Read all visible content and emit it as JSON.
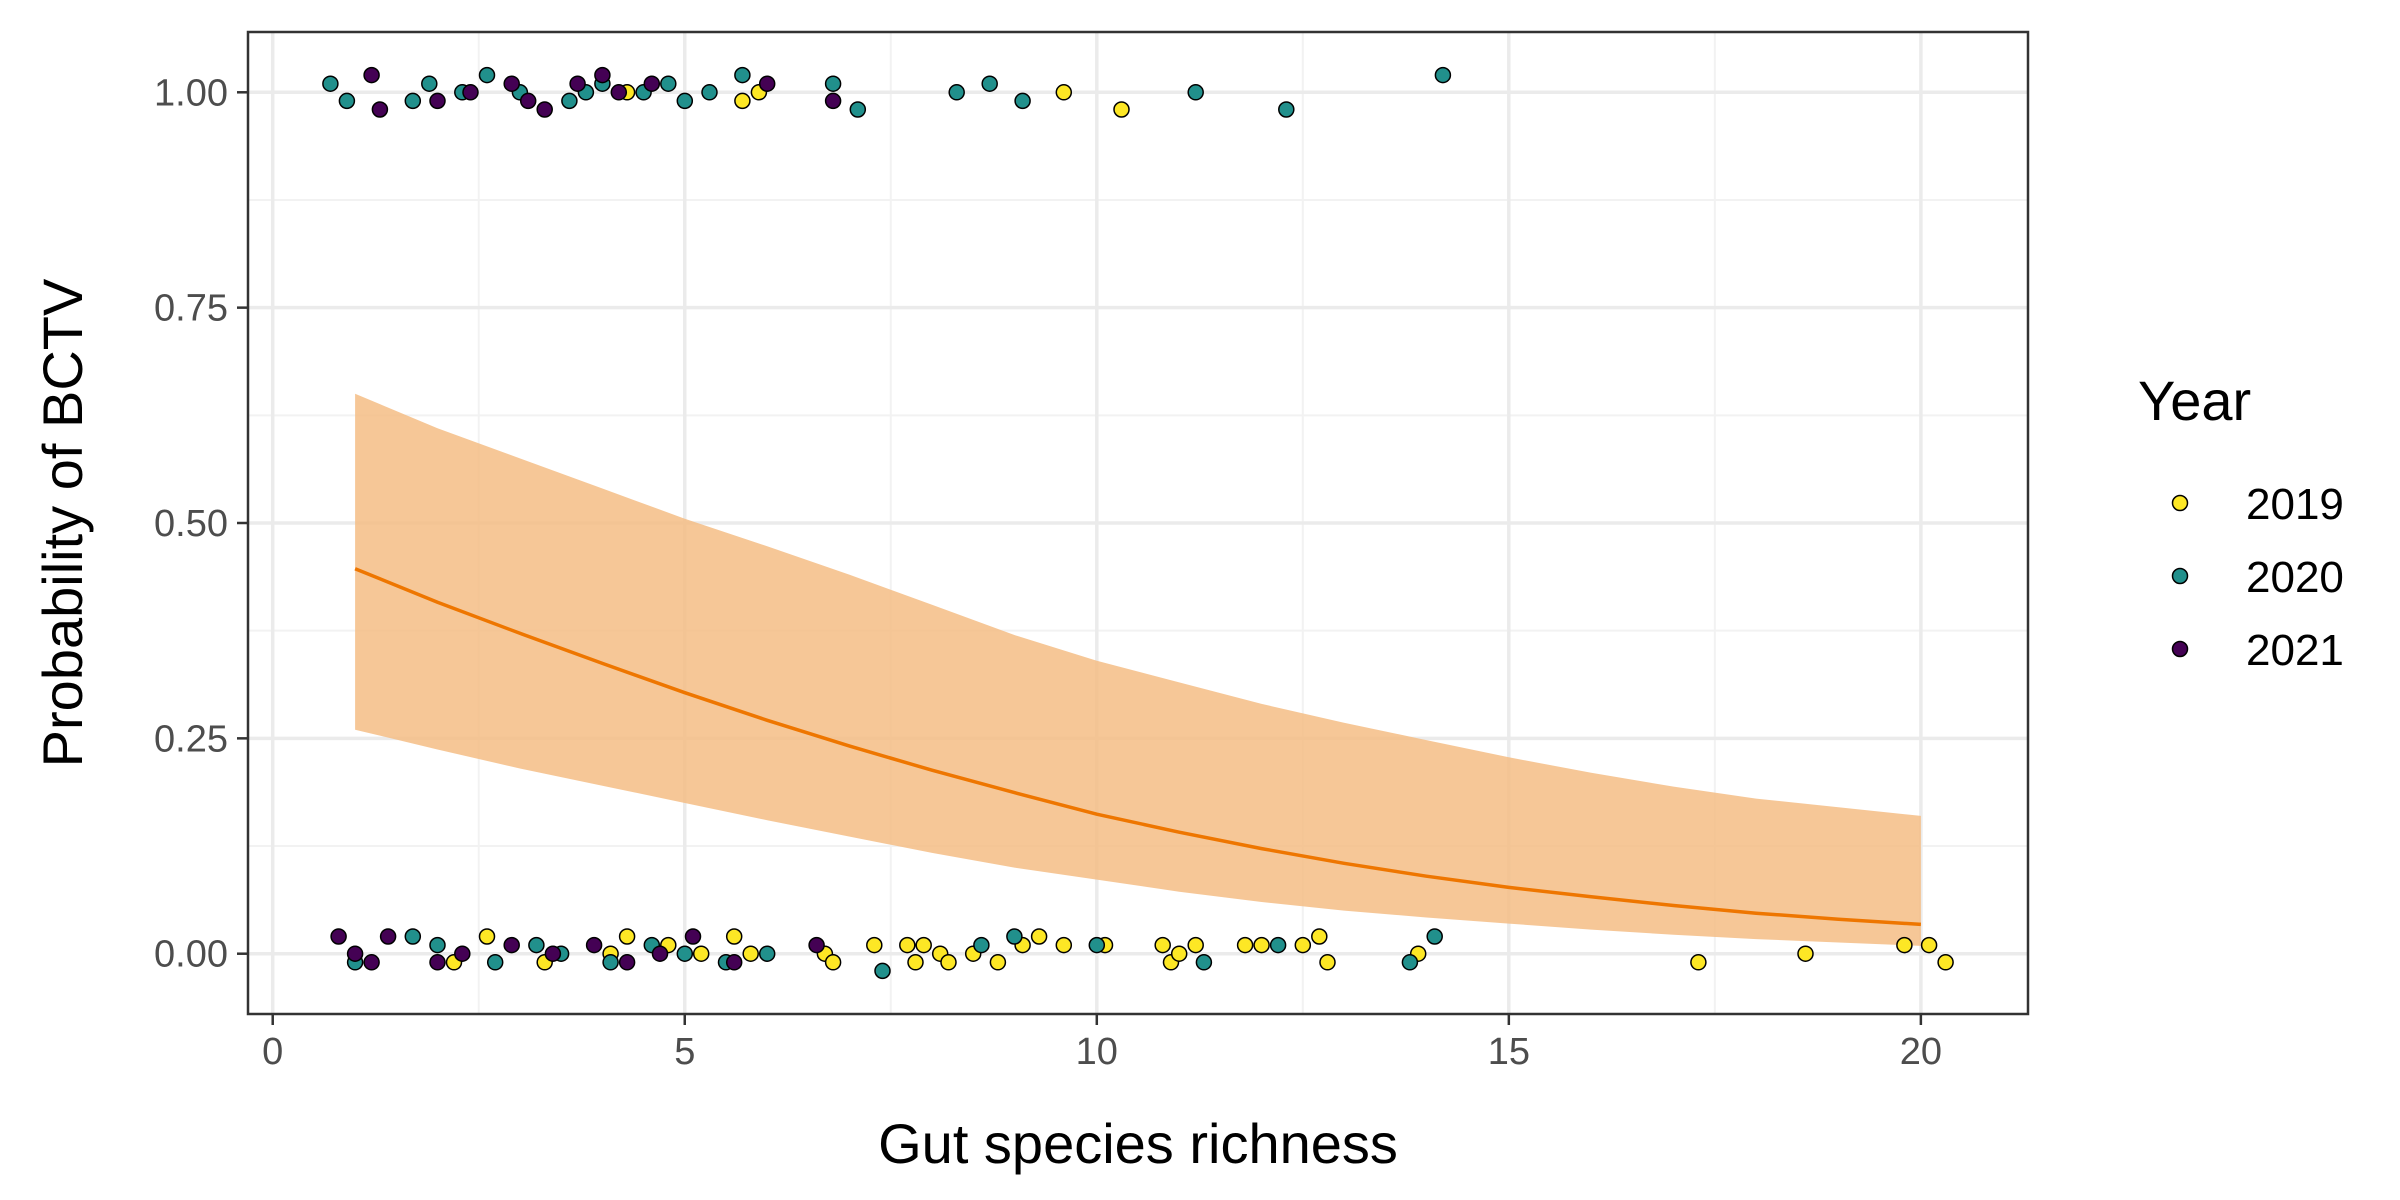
{
  "chart_data": {
    "type": "scatter",
    "title": "",
    "xlabel": "Gut species richness",
    "ylabel": "Probability of BCTV",
    "xlim": [
      -0.3,
      21.3
    ],
    "ylim": [
      -0.07,
      1.07
    ],
    "x_ticks": [
      0,
      5,
      10,
      15,
      20
    ],
    "x_tick_labels": [
      "0",
      "5",
      "10",
      "15",
      "20"
    ],
    "y_ticks": [
      0,
      0.25,
      0.5,
      0.75,
      1
    ],
    "y_tick_labels": [
      "0.00",
      "0.25",
      "0.50",
      "0.75",
      "1.00"
    ],
    "grid": true,
    "legend": {
      "title": "Year",
      "position": "right",
      "entries": [
        {
          "label": "2019",
          "color": "#FDE725"
        },
        {
          "label": "2020",
          "color": "#21908C"
        },
        {
          "label": "2021",
          "color": "#440154"
        }
      ]
    },
    "fit": {
      "color": "#EE7600",
      "ribbon_color": "#F5BD85",
      "x": [
        1,
        2,
        3,
        4,
        5,
        6,
        7,
        8,
        9,
        10,
        11,
        12,
        13,
        14,
        15,
        16,
        17,
        18,
        19,
        20
      ],
      "y": [
        0.447,
        0.408,
        0.372,
        0.337,
        0.303,
        0.271,
        0.241,
        0.213,
        0.187,
        0.162,
        0.141,
        0.122,
        0.105,
        0.09,
        0.077,
        0.066,
        0.056,
        0.047,
        0.04,
        0.034
      ],
      "lower": [
        0.26,
        0.237,
        0.215,
        0.195,
        0.175,
        0.155,
        0.136,
        0.117,
        0.1,
        0.086,
        0.072,
        0.06,
        0.05,
        0.042,
        0.035,
        0.028,
        0.022,
        0.017,
        0.013,
        0.009
      ],
      "upper": [
        0.65,
        0.61,
        0.575,
        0.54,
        0.505,
        0.473,
        0.44,
        0.405,
        0.37,
        0.34,
        0.315,
        0.29,
        0.268,
        0.248,
        0.228,
        0.21,
        0.194,
        0.18,
        0.17,
        0.16
      ]
    },
    "series": [
      {
        "name": "2019",
        "color": "#FDE725",
        "points": [
          [
            4.3,
            1.0
          ],
          [
            5.7,
            0.99
          ],
          [
            5.9,
            1.0
          ],
          [
            9.6,
            1.0
          ],
          [
            10.3,
            0.98
          ],
          [
            2.6,
            0.02
          ],
          [
            2.2,
            -0.01
          ],
          [
            3.3,
            -0.01
          ],
          [
            4.1,
            0.0
          ],
          [
            4.3,
            0.02
          ],
          [
            4.8,
            0.01
          ],
          [
            5.2,
            0.0
          ],
          [
            5.6,
            0.02
          ],
          [
            5.8,
            0.0
          ],
          [
            6.7,
            0.0
          ],
          [
            6.8,
            -0.01
          ],
          [
            7.3,
            0.01
          ],
          [
            7.7,
            0.01
          ],
          [
            7.8,
            -0.01
          ],
          [
            7.9,
            0.01
          ],
          [
            8.1,
            0.0
          ],
          [
            8.2,
            -0.01
          ],
          [
            8.5,
            0.0
          ],
          [
            8.8,
            -0.01
          ],
          [
            9.1,
            0.01
          ],
          [
            9.3,
            0.02
          ],
          [
            9.6,
            0.01
          ],
          [
            10.1,
            0.01
          ],
          [
            10.8,
            0.01
          ],
          [
            10.9,
            -0.01
          ],
          [
            11.0,
            0.0
          ],
          [
            11.2,
            0.01
          ],
          [
            11.8,
            0.01
          ],
          [
            12.0,
            0.01
          ],
          [
            12.5,
            0.01
          ],
          [
            12.7,
            0.02
          ],
          [
            12.8,
            -0.01
          ],
          [
            13.9,
            0.0
          ],
          [
            17.3,
            -0.01
          ],
          [
            18.6,
            0.0
          ],
          [
            19.8,
            0.01
          ],
          [
            20.1,
            0.01
          ],
          [
            20.3,
            -0.01
          ]
        ]
      },
      {
        "name": "2020",
        "color": "#21908C",
        "points": [
          [
            0.7,
            1.01
          ],
          [
            0.9,
            0.99
          ],
          [
            1.7,
            0.99
          ],
          [
            1.9,
            1.01
          ],
          [
            2.3,
            1.0
          ],
          [
            2.6,
            1.02
          ],
          [
            3.0,
            1.0
          ],
          [
            3.6,
            0.99
          ],
          [
            3.8,
            1.0
          ],
          [
            4.0,
            1.01
          ],
          [
            4.5,
            1.0
          ],
          [
            4.8,
            1.01
          ],
          [
            5.0,
            0.99
          ],
          [
            5.3,
            1.0
          ],
          [
            5.7,
            1.02
          ],
          [
            6.8,
            1.01
          ],
          [
            7.1,
            0.98
          ],
          [
            8.3,
            1.0
          ],
          [
            8.7,
            1.01
          ],
          [
            9.1,
            0.99
          ],
          [
            11.2,
            1.0
          ],
          [
            12.3,
            0.98
          ],
          [
            14.2,
            1.02
          ],
          [
            1.0,
            -0.01
          ],
          [
            1.7,
            0.02
          ],
          [
            2.0,
            0.01
          ],
          [
            2.7,
            -0.01
          ],
          [
            3.2,
            0.01
          ],
          [
            3.5,
            0.0
          ],
          [
            4.1,
            -0.01
          ],
          [
            4.6,
            0.01
          ],
          [
            5.0,
            0.0
          ],
          [
            5.5,
            -0.01
          ],
          [
            6.0,
            0.0
          ],
          [
            7.4,
            -0.02
          ],
          [
            8.6,
            0.01
          ],
          [
            9.0,
            0.02
          ],
          [
            10.0,
            0.01
          ],
          [
            11.3,
            -0.01
          ],
          [
            12.2,
            0.01
          ],
          [
            13.8,
            -0.01
          ],
          [
            14.1,
            0.02
          ]
        ]
      },
      {
        "name": "2021",
        "color": "#440154",
        "points": [
          [
            1.2,
            1.02
          ],
          [
            1.3,
            0.98
          ],
          [
            2.0,
            0.99
          ],
          [
            2.4,
            1.0
          ],
          [
            2.9,
            1.01
          ],
          [
            3.1,
            0.99
          ],
          [
            3.3,
            0.98
          ],
          [
            3.7,
            1.01
          ],
          [
            4.0,
            1.02
          ],
          [
            4.2,
            1.0
          ],
          [
            4.6,
            1.01
          ],
          [
            6.0,
            1.01
          ],
          [
            6.8,
            0.99
          ],
          [
            0.8,
            0.02
          ],
          [
            1.0,
            0.0
          ],
          [
            1.2,
            -0.01
          ],
          [
            1.4,
            0.02
          ],
          [
            2.0,
            -0.01
          ],
          [
            2.3,
            0.0
          ],
          [
            2.9,
            0.01
          ],
          [
            3.4,
            0.0
          ],
          [
            3.9,
            0.01
          ],
          [
            4.3,
            -0.01
          ],
          [
            4.7,
            0.0
          ],
          [
            5.1,
            0.02
          ],
          [
            5.6,
            -0.01
          ],
          [
            6.6,
            0.01
          ]
        ]
      }
    ]
  }
}
